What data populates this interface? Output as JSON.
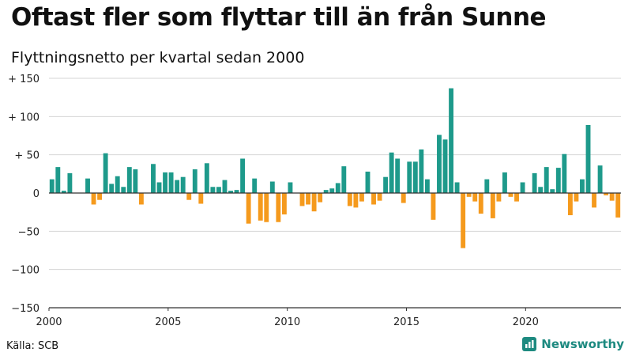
{
  "title": "Oftast fler som flyttar till än från Sunne",
  "subtitle": "Flyttningsnetto per kvartal sedan 2000",
  "source": "Källa: SCB",
  "brand": {
    "name": "Newsworthy",
    "icon": "newsworthy-logo-icon"
  },
  "colors": {
    "positive": "#1e9a8b",
    "negative": "#f59a1d",
    "axis": "#333333",
    "grid": "#d6d6d6"
  },
  "chart_data": {
    "type": "bar",
    "ylim": [
      -150,
      150
    ],
    "y_ticks": [
      {
        "value": 150,
        "label": "+ 150"
      },
      {
        "value": 100,
        "label": "+ 100"
      },
      {
        "value": 50,
        "label": "+  50"
      },
      {
        "value": 0,
        "label": "0"
      },
      {
        "value": -50,
        "label": "−50"
      },
      {
        "value": -100,
        "label": "−100"
      },
      {
        "value": -150,
        "label": "−150"
      }
    ],
    "x_ticks": [
      {
        "value": 2000,
        "label": "2000"
      },
      {
        "value": 2005,
        "label": "2005"
      },
      {
        "value": 2010,
        "label": "2010"
      },
      {
        "value": 2015,
        "label": "2015"
      },
      {
        "value": 2020,
        "label": "2020"
      }
    ],
    "x_range": [
      2000,
      2024
    ],
    "grid": true,
    "legend": "none",
    "quarters": [
      "2000 Q1",
      "2000 Q2",
      "2000 Q3",
      "2000 Q4",
      "2001 Q1",
      "2001 Q2",
      "2001 Q3",
      "2001 Q4",
      "2002 Q1",
      "2002 Q2",
      "2002 Q3",
      "2002 Q4",
      "2003 Q1",
      "2003 Q2",
      "2003 Q3",
      "2003 Q4",
      "2004 Q1",
      "2004 Q2",
      "2004 Q3",
      "2004 Q4",
      "2005 Q1",
      "2005 Q2",
      "2005 Q3",
      "2005 Q4",
      "2006 Q1",
      "2006 Q2",
      "2006 Q3",
      "2006 Q4",
      "2007 Q1",
      "2007 Q2",
      "2007 Q3",
      "2007 Q4",
      "2008 Q1",
      "2008 Q2",
      "2008 Q3",
      "2008 Q4",
      "2009 Q1",
      "2009 Q2",
      "2009 Q3",
      "2009 Q4",
      "2010 Q1",
      "2010 Q2",
      "2010 Q3",
      "2010 Q4",
      "2011 Q1",
      "2011 Q2",
      "2011 Q3",
      "2011 Q4",
      "2012 Q1",
      "2012 Q2",
      "2012 Q3",
      "2012 Q4",
      "2013 Q1",
      "2013 Q2",
      "2013 Q3",
      "2013 Q4",
      "2014 Q1",
      "2014 Q2",
      "2014 Q3",
      "2014 Q4",
      "2015 Q1",
      "2015 Q2",
      "2015 Q3",
      "2015 Q4",
      "2016 Q1",
      "2016 Q2",
      "2016 Q3",
      "2016 Q4",
      "2017 Q1",
      "2017 Q2",
      "2017 Q3",
      "2017 Q4",
      "2018 Q1",
      "2018 Q2",
      "2018 Q3",
      "2018 Q4",
      "2019 Q1",
      "2019 Q2",
      "2019 Q3",
      "2019 Q4",
      "2020 Q1",
      "2020 Q2",
      "2020 Q3",
      "2020 Q4",
      "2021 Q1",
      "2021 Q2",
      "2021 Q3",
      "2021 Q4",
      "2022 Q1",
      "2022 Q2",
      "2022 Q3",
      "2022 Q4",
      "2023 Q1",
      "2023 Q2",
      "2023 Q3",
      "2023 Q4"
    ],
    "values": [
      18,
      34,
      3,
      26,
      0,
      0,
      19,
      -15,
      -9,
      52,
      12,
      22,
      8,
      34,
      31,
      -15,
      0,
      38,
      14,
      27,
      27,
      17,
      21,
      -9,
      31,
      -14,
      39,
      8,
      8,
      17,
      3,
      4,
      45,
      -40,
      19,
      -36,
      -38,
      15,
      -38,
      -28,
      14,
      0,
      -17,
      -15,
      -24,
      -12,
      4,
      6,
      13,
      35,
      -17,
      -19,
      -11,
      28,
      -15,
      -10,
      21,
      53,
      45,
      -13,
      41,
      41,
      57,
      18,
      -35,
      76,
      70,
      137,
      14,
      -72,
      -5,
      -11,
      -27,
      18,
      -33,
      -11,
      27,
      -5,
      -11,
      14,
      0,
      26,
      8,
      34,
      5,
      33,
      51,
      -29,
      -11,
      18,
      89,
      -19,
      36,
      -3,
      -10,
      -32
    ]
  }
}
